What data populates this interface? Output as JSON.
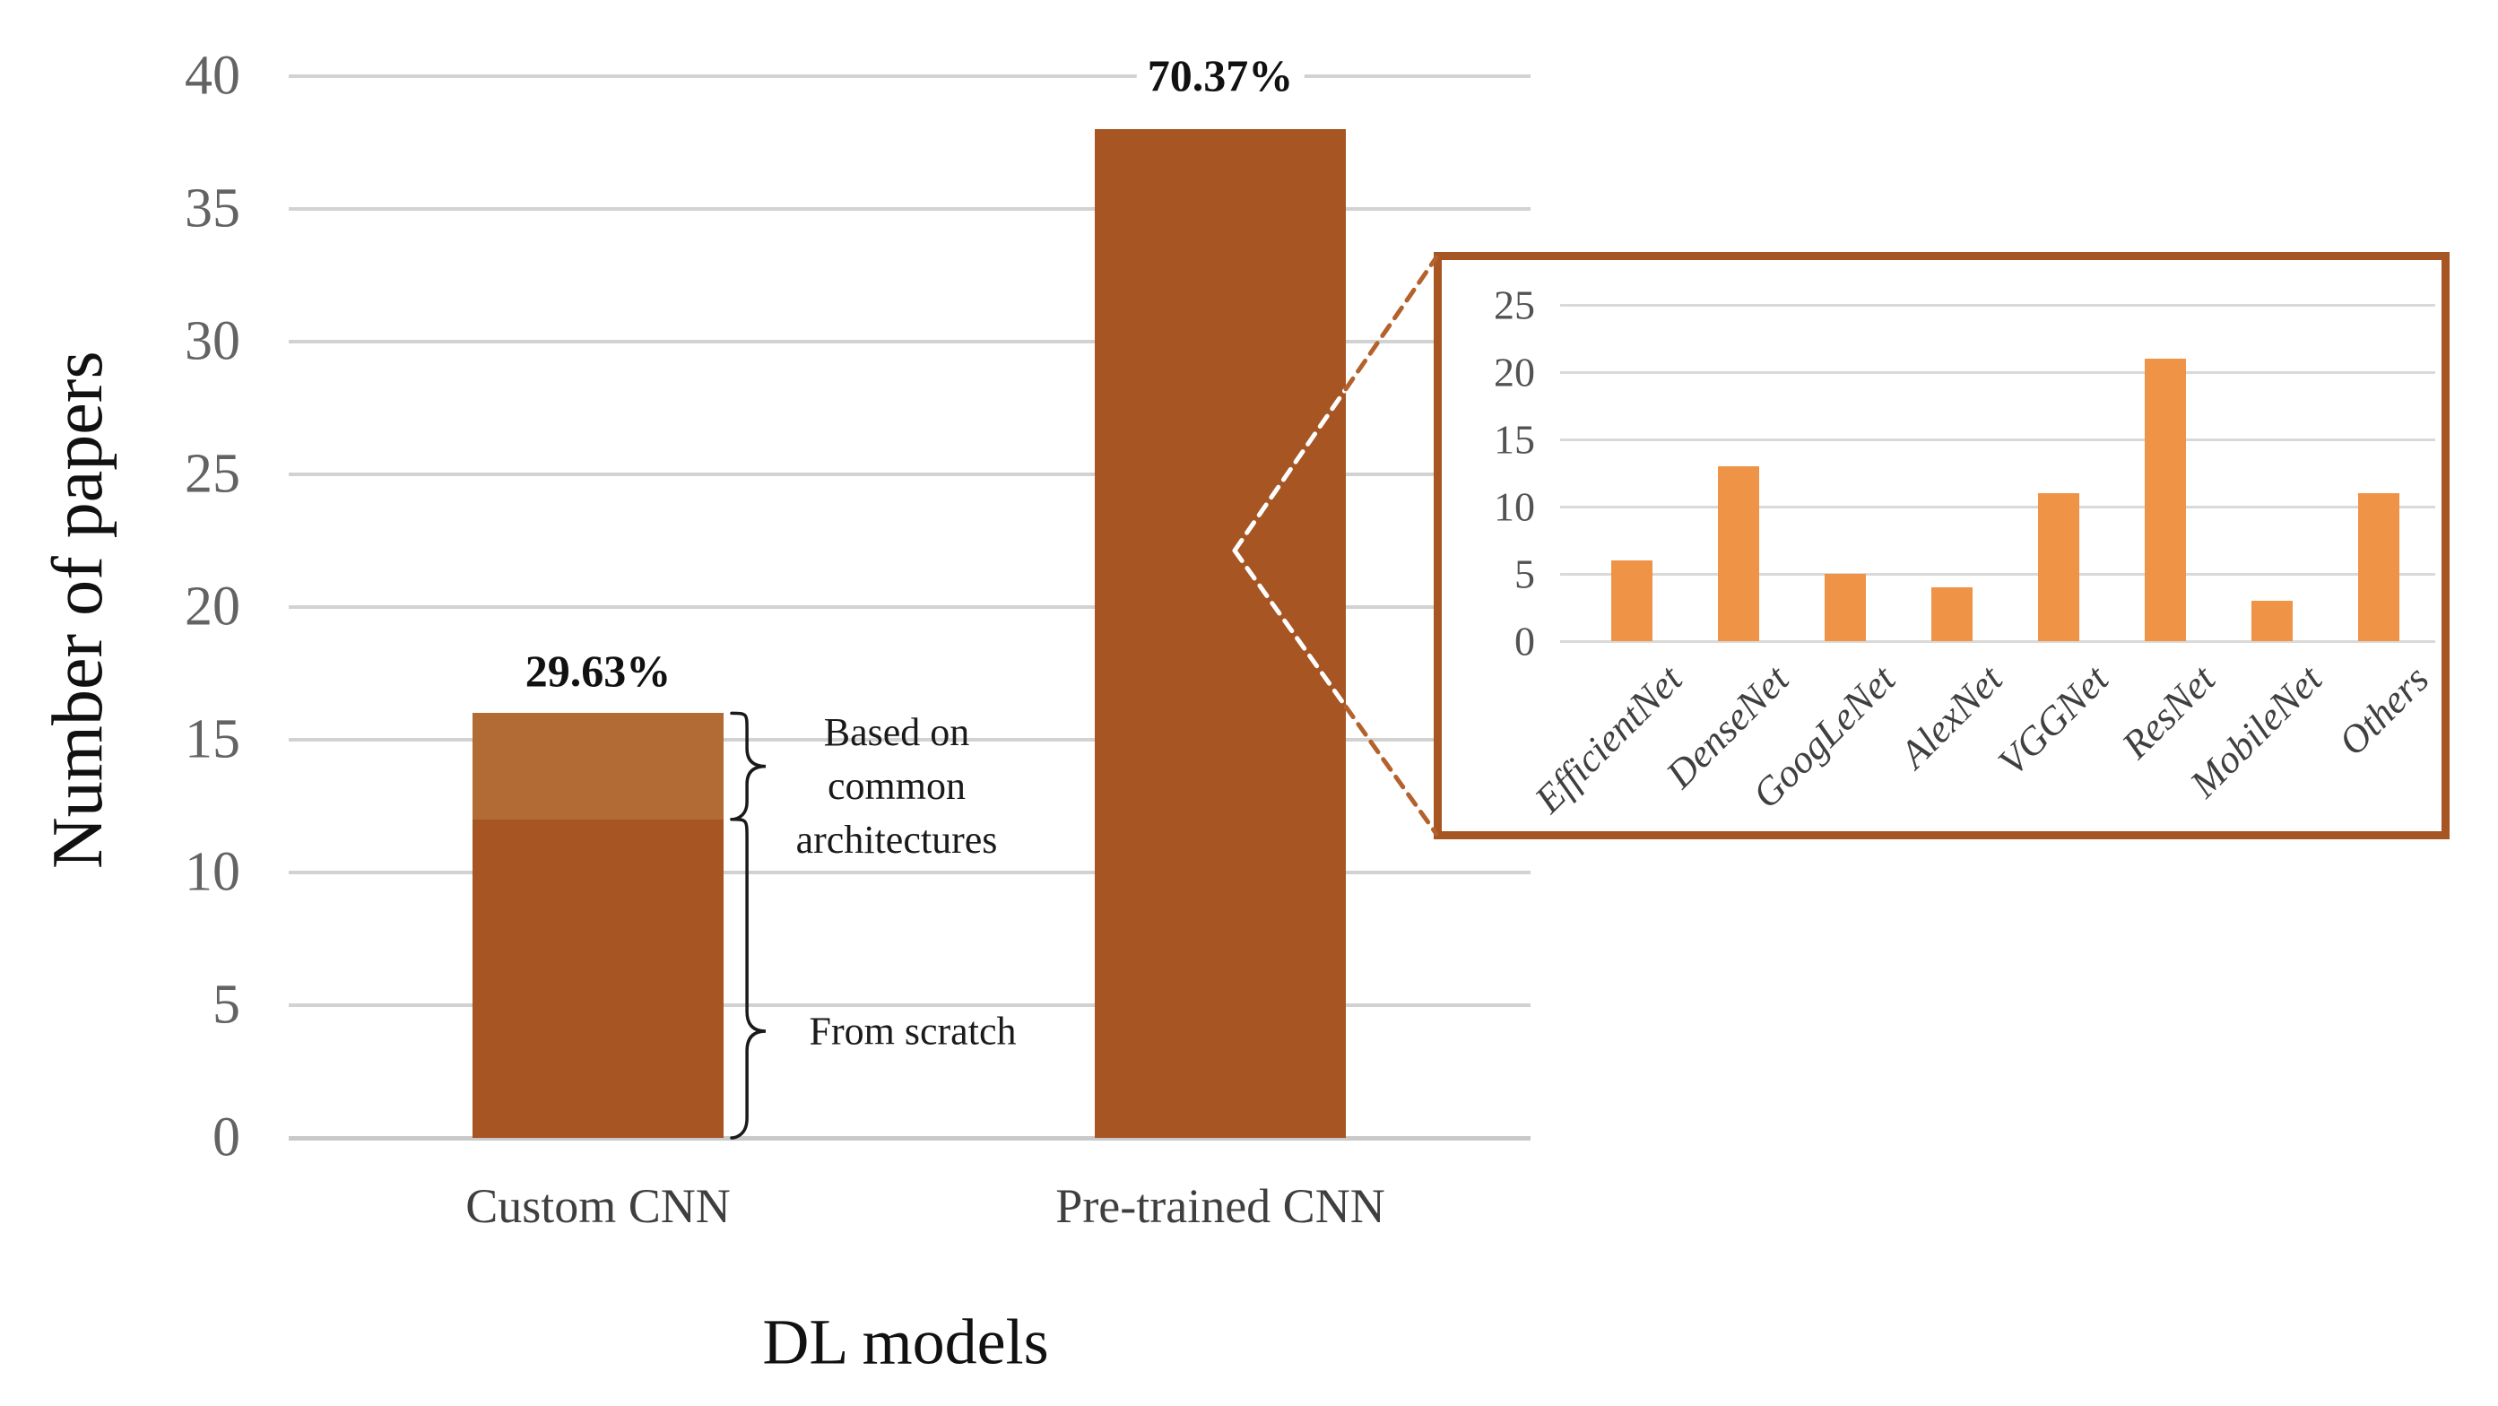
{
  "figure": {
    "background": "#FFFFFF",
    "connector": {
      "color": "#B4622D",
      "color_on_bar": "#FFFFFF",
      "style": "dashed"
    },
    "brace_color": "#1A1A1A"
  },
  "chart_data": [
    {
      "id": "main-bar-chart",
      "type": "bar",
      "stacked": true,
      "xlabel": "DL models",
      "ylabel": "Number of papers",
      "categories": [
        "Custom CNN",
        "Pre-trained CNN"
      ],
      "series": [
        {
          "name": "From scratch",
          "values": [
            12,
            38
          ],
          "color": "#A65523"
        },
        {
          "name": "Based on common architectures",
          "values": [
            4,
            0
          ],
          "color": "#B26B35"
        }
      ],
      "totals": [
        16,
        38
      ],
      "bar_labels": [
        "29.63%",
        "70.37%"
      ],
      "ylim": [
        0,
        40
      ],
      "ytick_step": 5,
      "yticks": [
        0,
        5,
        10,
        15,
        20,
        25,
        30,
        35,
        40
      ],
      "grid": true,
      "gridline_color": "#D2D2D2",
      "axis_line_color": "#C9C9C9",
      "tick_text_color": "#636363",
      "category_text_color": "#3F3F3F",
      "annotations": {
        "brace_top_label_lines": [
          "Based on",
          "common",
          "architectures"
        ],
        "brace_bottom_label": "From scratch"
      }
    },
    {
      "id": "inset-bar-chart",
      "type": "bar",
      "categories": [
        "EfficientNet",
        "DenseNet",
        "GoogLeNet",
        "AlexNet",
        "VGGNet",
        "ResNet",
        "MobileNet",
        "Others"
      ],
      "values": [
        6,
        13,
        5,
        4,
        11,
        21,
        3,
        11
      ],
      "ylim": [
        0,
        25
      ],
      "ytick_step": 5,
      "yticks": [
        0,
        5,
        10,
        15,
        20,
        25
      ],
      "grid": true,
      "bar_color": "#EF9347",
      "border_color": "#A65523",
      "gridline_color": "#D9D9D9",
      "tick_text_color": "#525252",
      "category_text_color": "#3F3F3F"
    }
  ]
}
